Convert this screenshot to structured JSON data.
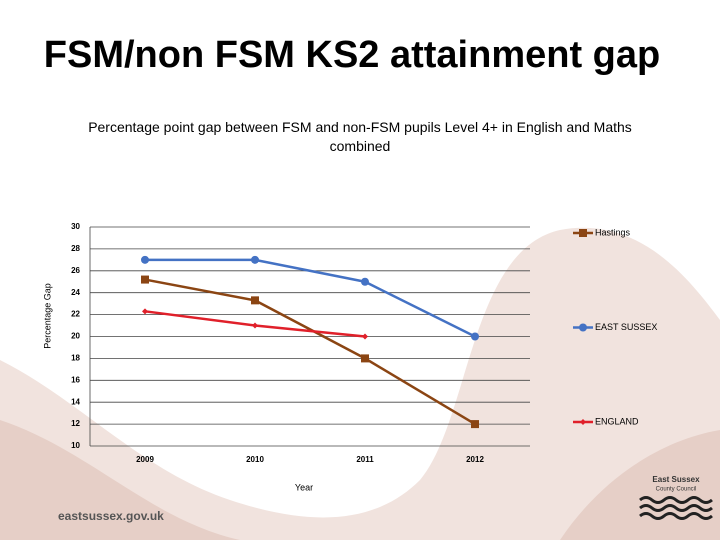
{
  "slide_title": "FSM/non FSM KS2 attainment gap",
  "chart_data": {
    "type": "line",
    "title": "Percentage point gap between FSM and non-FSM pupils Level 4+ in English and Maths combined",
    "x_label": "Year",
    "y_label": "Percentage Gap",
    "categories": [
      "2009",
      "2010",
      "2011",
      "2012"
    ],
    "series": [
      {
        "name": "Hastings",
        "color": "#8b4513",
        "marker": "square",
        "values": [
          25.2,
          23.3,
          18,
          12
        ]
      },
      {
        "name": "EAST SUSSEX",
        "color": "#4472c4",
        "marker": "circle",
        "values": [
          27,
          27,
          25,
          20
        ]
      },
      {
        "name": "ENGLAND",
        "color": "#e0202a",
        "marker": "diamond",
        "values": [
          22.3,
          21,
          20,
          null
        ]
      }
    ],
    "ylim": [
      10,
      30
    ],
    "yticks": [
      10,
      12,
      14,
      16,
      18,
      20,
      22,
      24,
      26,
      28,
      30
    ],
    "grid": true,
    "legend": "right"
  },
  "footer": {
    "url": "eastsussex.gov.uk",
    "logo_line1": "East Sussex",
    "logo_line2": "County Council"
  }
}
